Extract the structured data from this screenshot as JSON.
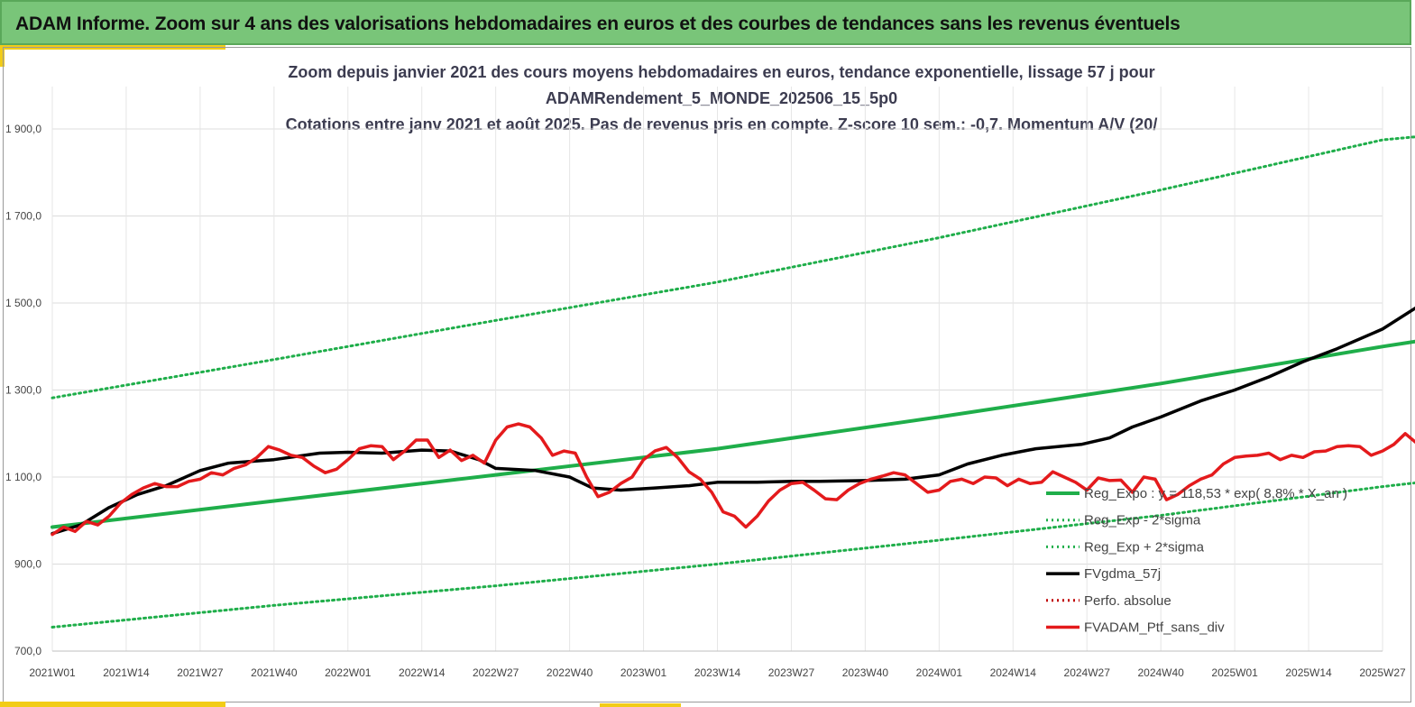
{
  "banner": {
    "title": "ADAM Informe. Zoom sur 4 ans des valorisations hebdomadaires en euros et des courbes de tendances sans les revenus éventuels"
  },
  "colors": {
    "banner_bg": "#79c579",
    "accent": "#f2cc17",
    "trend": "#1fae4a",
    "smoothed": "#000000",
    "portfolio": "#e41a1c",
    "absolute_perf": "#c00000"
  },
  "chart_data": {
    "type": "line",
    "title_lines": [
      "Zoom depuis janvier 2021 des cours moyens hebdomadaires  en euros, tendance exponentielle, lissage 57 j pour",
      "ADAMRendement_5_MONDE_202506_15_5p0",
      "Cotations  entre janv 2021 et août 2025. Pas de revenus pris en compte. Z-score 10 sem.: -0,7. Momentum A/V (20/"
    ],
    "x_tick_labels": [
      "2021W01",
      "2021W14",
      "2021W27",
      "2021W40",
      "2022W01",
      "2022W14",
      "2022W27",
      "2022W40",
      "2023W01",
      "2023W14",
      "2023W27",
      "2023W40",
      "2024W01",
      "2024W14",
      "2024W27",
      "2024W40",
      "2025W01",
      "2025W14",
      "2025W27"
    ],
    "y_tick_labels": [
      "700,0",
      "900,0",
      "1 100,0",
      "1 300,0",
      "1 500,0",
      "1 700,0",
      "1 900,0"
    ],
    "ylim": [
      700,
      1950
    ],
    "grid": "horizontal and vertical",
    "legend_position": "bottom-right",
    "x_unit": "week index since 2021W01",
    "series": [
      {
        "name": "Reg_Expo : y = 118,53 * exp( 8,8% *  X_an )",
        "style": "solid-green",
        "points": [
          [
            0,
            985
          ],
          [
            39,
            1045
          ],
          [
            78,
            1105
          ],
          [
            117,
            1165
          ],
          [
            156,
            1238
          ],
          [
            195,
            1315
          ],
          [
            234,
            1400
          ],
          [
            240,
            1412
          ],
          [
            242,
            1418
          ],
          [
            258,
            1455
          ],
          [
            267,
            1470
          ]
        ]
      },
      {
        "name": "Reg_Exp - 2*sigma",
        "style": "dotted-green",
        "points": [
          [
            0,
            755
          ],
          [
            39,
            805
          ],
          [
            78,
            850
          ],
          [
            117,
            900
          ],
          [
            156,
            955
          ],
          [
            195,
            1012
          ],
          [
            234,
            1078
          ],
          [
            267,
            1127
          ]
        ]
      },
      {
        "name": "Reg_Exp + 2*sigma",
        "style": "dotted-green",
        "points": [
          [
            0,
            1282
          ],
          [
            39,
            1370
          ],
          [
            78,
            1460
          ],
          [
            117,
            1548
          ],
          [
            156,
            1650
          ],
          [
            195,
            1760
          ],
          [
            234,
            1875
          ],
          [
            267,
            1915
          ]
        ]
      },
      {
        "name": "FVgdma_57j",
        "style": "solid-black",
        "points": [
          [
            0,
            970
          ],
          [
            5,
            990
          ],
          [
            10,
            1030
          ],
          [
            15,
            1060
          ],
          [
            20,
            1080
          ],
          [
            26,
            1115
          ],
          [
            31,
            1132
          ],
          [
            39,
            1140
          ],
          [
            47,
            1155
          ],
          [
            52,
            1157
          ],
          [
            58,
            1155
          ],
          [
            65,
            1162
          ],
          [
            70,
            1160
          ],
          [
            75,
            1140
          ],
          [
            78,
            1120
          ],
          [
            85,
            1115
          ],
          [
            91,
            1100
          ],
          [
            95,
            1075
          ],
          [
            100,
            1070
          ],
          [
            106,
            1075
          ],
          [
            112,
            1080
          ],
          [
            117,
            1088
          ],
          [
            124,
            1088
          ],
          [
            130,
            1090
          ],
          [
            135,
            1090
          ],
          [
            143,
            1092
          ],
          [
            150,
            1095
          ],
          [
            156,
            1105
          ],
          [
            161,
            1130
          ],
          [
            167,
            1150
          ],
          [
            173,
            1165
          ],
          [
            181,
            1175
          ],
          [
            186,
            1190
          ],
          [
            190,
            1215
          ],
          [
            195,
            1238
          ],
          [
            202,
            1275
          ],
          [
            208,
            1300
          ],
          [
            214,
            1330
          ],
          [
            220,
            1365
          ],
          [
            226,
            1395
          ],
          [
            234,
            1440
          ],
          [
            240,
            1490
          ],
          [
            247,
            1510
          ],
          [
            254,
            1515
          ],
          [
            260,
            1522
          ]
        ]
      },
      {
        "name": "Perfo. absolue",
        "style": "dotted-red",
        "points": []
      },
      {
        "name": "FVADAM_Ptf_sans_div",
        "style": "solid-red",
        "points": [
          [
            0,
            968
          ],
          [
            2,
            985
          ],
          [
            4,
            975
          ],
          [
            6,
            998
          ],
          [
            8,
            990
          ],
          [
            10,
            1010
          ],
          [
            12,
            1040
          ],
          [
            14,
            1060
          ],
          [
            16,
            1075
          ],
          [
            18,
            1085
          ],
          [
            20,
            1078
          ],
          [
            22,
            1078
          ],
          [
            24,
            1090
          ],
          [
            26,
            1095
          ],
          [
            28,
            1110
          ],
          [
            30,
            1105
          ],
          [
            32,
            1120
          ],
          [
            34,
            1128
          ],
          [
            36,
            1145
          ],
          [
            38,
            1170
          ],
          [
            40,
            1162
          ],
          [
            42,
            1150
          ],
          [
            44,
            1145
          ],
          [
            46,
            1125
          ],
          [
            48,
            1110
          ],
          [
            50,
            1118
          ],
          [
            52,
            1140
          ],
          [
            54,
            1165
          ],
          [
            56,
            1172
          ],
          [
            58,
            1170
          ],
          [
            60,
            1140
          ],
          [
            62,
            1160
          ],
          [
            64,
            1185
          ],
          [
            66,
            1185
          ],
          [
            68,
            1145
          ],
          [
            70,
            1162
          ],
          [
            72,
            1138
          ],
          [
            74,
            1150
          ],
          [
            76,
            1132
          ],
          [
            78,
            1185
          ],
          [
            80,
            1215
          ],
          [
            82,
            1222
          ],
          [
            84,
            1215
          ],
          [
            86,
            1190
          ],
          [
            88,
            1150
          ],
          [
            90,
            1160
          ],
          [
            92,
            1155
          ],
          [
            94,
            1100
          ],
          [
            96,
            1055
          ],
          [
            98,
            1065
          ],
          [
            100,
            1085
          ],
          [
            102,
            1100
          ],
          [
            104,
            1140
          ],
          [
            106,
            1160
          ],
          [
            108,
            1168
          ],
          [
            110,
            1145
          ],
          [
            112,
            1112
          ],
          [
            114,
            1095
          ],
          [
            116,
            1065
          ],
          [
            118,
            1020
          ],
          [
            120,
            1010
          ],
          [
            122,
            985
          ],
          [
            124,
            1010
          ],
          [
            126,
            1045
          ],
          [
            128,
            1070
          ],
          [
            130,
            1085
          ],
          [
            132,
            1088
          ],
          [
            134,
            1070
          ],
          [
            136,
            1050
          ],
          [
            138,
            1048
          ],
          [
            140,
            1070
          ],
          [
            142,
            1085
          ],
          [
            144,
            1095
          ],
          [
            146,
            1102
          ],
          [
            148,
            1110
          ],
          [
            150,
            1105
          ],
          [
            152,
            1085
          ],
          [
            154,
            1065
          ],
          [
            156,
            1070
          ],
          [
            158,
            1090
          ],
          [
            160,
            1095
          ],
          [
            162,
            1085
          ],
          [
            164,
            1100
          ],
          [
            166,
            1098
          ],
          [
            168,
            1080
          ],
          [
            170,
            1095
          ],
          [
            172,
            1085
          ],
          [
            174,
            1088
          ],
          [
            176,
            1112
          ],
          [
            178,
            1100
          ],
          [
            180,
            1088
          ],
          [
            182,
            1070
          ],
          [
            184,
            1098
          ],
          [
            186,
            1092
          ],
          [
            188,
            1093
          ],
          [
            190,
            1065
          ],
          [
            192,
            1100
          ],
          [
            194,
            1095
          ],
          [
            196,
            1048
          ],
          [
            198,
            1060
          ],
          [
            200,
            1080
          ],
          [
            202,
            1095
          ],
          [
            204,
            1105
          ],
          [
            206,
            1130
          ],
          [
            208,
            1145
          ],
          [
            210,
            1148
          ],
          [
            212,
            1150
          ],
          [
            214,
            1155
          ],
          [
            216,
            1140
          ],
          [
            218,
            1150
          ],
          [
            220,
            1145
          ],
          [
            222,
            1158
          ],
          [
            224,
            1160
          ],
          [
            226,
            1170
          ],
          [
            228,
            1172
          ],
          [
            230,
            1170
          ],
          [
            232,
            1150
          ],
          [
            234,
            1160
          ],
          [
            236,
            1175
          ],
          [
            238,
            1200
          ],
          [
            240,
            1178
          ],
          [
            242,
            1200
          ],
          [
            244,
            1210
          ],
          [
            246,
            1240
          ],
          [
            248,
            1210
          ],
          [
            250,
            1265
          ],
          [
            252,
            1285
          ],
          [
            254,
            1300
          ],
          [
            256,
            1305
          ],
          [
            258,
            1290
          ],
          [
            260,
            1320
          ],
          [
            262,
            1345
          ],
          [
            264,
            1380
          ],
          [
            266,
            1380
          ],
          [
            268,
            1355
          ],
          [
            270,
            1360
          ],
          [
            272,
            1365
          ],
          [
            274,
            1420
          ],
          [
            276,
            1445
          ],
          [
            278,
            1450
          ],
          [
            280,
            1410
          ],
          [
            282,
            1455
          ],
          [
            284,
            1448
          ],
          [
            286,
            1360
          ],
          [
            288,
            1440
          ],
          [
            290,
            1490
          ],
          [
            292,
            1540
          ],
          [
            294,
            1565
          ],
          [
            296,
            1545
          ],
          [
            298,
            1535
          ],
          [
            300,
            1540
          ],
          [
            302,
            1530
          ],
          [
            304,
            1530
          ]
        ]
      }
    ]
  }
}
